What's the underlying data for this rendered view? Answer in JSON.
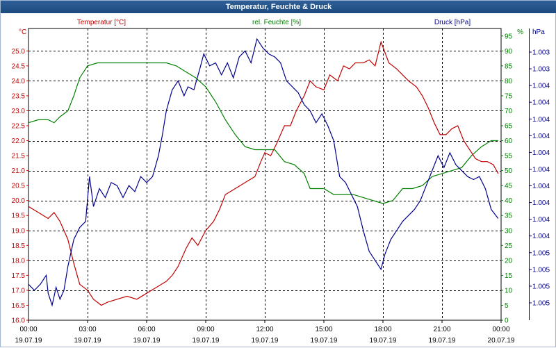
{
  "window": {
    "title": "Temperatur, Feuchte & Druck"
  },
  "colors": {
    "temperature": "#c00000",
    "humidity": "#008000",
    "pressure": "#00008b",
    "title_bar": "#1f4e86",
    "grid": "#000000"
  },
  "chart_data": {
    "type": "line",
    "title": "Temperatur, Feuchte & Druck",
    "x_range": [
      "19.07.19 00:00",
      "20.07.19 00:00"
    ],
    "x_tick_labels": [
      [
        "00:00",
        "19.07.19"
      ],
      [
        "03:00",
        "19.07.19"
      ],
      [
        "06:00",
        "19.07.19"
      ],
      [
        "09:00",
        "19.07.19"
      ],
      [
        "12:00",
        "19.07.19"
      ],
      [
        "15:00",
        "19.07.19"
      ],
      [
        "18:00",
        "19.07.19"
      ],
      [
        "21:00",
        "19.07.19"
      ],
      [
        "00:00",
        "20.07.19"
      ]
    ],
    "grid": true,
    "axes": {
      "temperature": {
        "unit_label": "°C",
        "ylim": [
          16.0,
          25.75
        ],
        "tick_labels": [
          "16.0",
          "16.5",
          "17.0",
          "17.5",
          "18.0",
          "18.5",
          "19.0",
          "19.5",
          "20.0",
          "20.5",
          "21.0",
          "21.5",
          "22.0",
          "22.5",
          "23.0",
          "23.5",
          "24.0",
          "24.5",
          "25.0"
        ]
      },
      "humidity": {
        "unit_label": "%",
        "ylim": [
          0,
          97.5
        ],
        "tick_labels": [
          "0",
          "5",
          "10",
          "15",
          "20",
          "25",
          "30",
          "35",
          "40",
          "45",
          "50",
          "55",
          "60",
          "65",
          "70",
          "75",
          "80",
          "85",
          "90",
          "95"
        ]
      },
      "pressure": {
        "unit_label": "hPa",
        "tick_labels": [
          "1.003",
          "1.003",
          "1.004",
          "1.004",
          "1.004",
          "1.004",
          "1.004",
          "1.004",
          "1.004",
          "1.004",
          "1.004",
          "1.004",
          "1.005",
          "1.005",
          "1.005",
          "1.005"
        ]
      }
    },
    "series": [
      {
        "name": "Temperatur [°C]",
        "axis": "temperature",
        "points": [
          [
            0,
            19.8
          ],
          [
            0.5,
            19.6
          ],
          [
            1,
            19.4
          ],
          [
            1.3,
            19.6
          ],
          [
            1.6,
            19.3
          ],
          [
            2,
            18.7
          ],
          [
            2.3,
            17.9
          ],
          [
            2.6,
            17.2
          ],
          [
            3,
            17.0
          ],
          [
            3.3,
            16.7
          ],
          [
            3.7,
            16.5
          ],
          [
            4,
            16.6
          ],
          [
            4.5,
            16.7
          ],
          [
            5,
            16.8
          ],
          [
            5.5,
            16.7
          ],
          [
            6,
            16.9
          ],
          [
            6.5,
            17.1
          ],
          [
            7,
            17.3
          ],
          [
            7.3,
            17.5
          ],
          [
            7.6,
            17.8
          ],
          [
            8,
            18.4
          ],
          [
            8.3,
            18.75
          ],
          [
            8.6,
            18.5
          ],
          [
            9,
            19.0
          ],
          [
            9.4,
            19.3
          ],
          [
            9.7,
            19.7
          ],
          [
            10,
            20.2
          ],
          [
            10.5,
            20.4
          ],
          [
            11,
            20.6
          ],
          [
            11.5,
            20.8
          ],
          [
            11.8,
            21.3
          ],
          [
            12,
            21.6
          ],
          [
            12.3,
            21.5
          ],
          [
            12.6,
            21.9
          ],
          [
            13,
            22.5
          ],
          [
            13.3,
            22.5
          ],
          [
            13.6,
            23.0
          ],
          [
            14,
            23.5
          ],
          [
            14.3,
            24.0
          ],
          [
            14.6,
            23.8
          ],
          [
            15,
            23.7
          ],
          [
            15.3,
            24.2
          ],
          [
            15.7,
            24.0
          ],
          [
            16,
            24.5
          ],
          [
            16.3,
            24.4
          ],
          [
            16.6,
            24.6
          ],
          [
            17,
            24.6
          ],
          [
            17.3,
            24.7
          ],
          [
            17.6,
            24.5
          ],
          [
            17.9,
            25.3
          ],
          [
            18.3,
            24.6
          ],
          [
            18.7,
            24.4
          ],
          [
            19,
            24.2
          ],
          [
            19.3,
            24.0
          ],
          [
            19.7,
            23.8
          ],
          [
            20,
            23.5
          ],
          [
            20.3,
            23.1
          ],
          [
            20.6,
            22.6
          ],
          [
            20.9,
            22.2
          ],
          [
            21.2,
            22.2
          ],
          [
            21.5,
            22.4
          ],
          [
            21.8,
            22.5
          ],
          [
            22.1,
            22.0
          ],
          [
            22.4,
            21.7
          ],
          [
            22.7,
            21.4
          ],
          [
            23,
            21.3
          ],
          [
            23.3,
            21.3
          ],
          [
            23.6,
            21.2
          ],
          [
            23.85,
            20.9
          ]
        ]
      },
      {
        "name": "rel. Feuchte [%]",
        "axis": "humidity",
        "points": [
          [
            0,
            66
          ],
          [
            0.5,
            67
          ],
          [
            1,
            67
          ],
          [
            1.3,
            66
          ],
          [
            1.6,
            68
          ],
          [
            2,
            70
          ],
          [
            2.3,
            75
          ],
          [
            2.6,
            81
          ],
          [
            3,
            85
          ],
          [
            3.5,
            86
          ],
          [
            4,
            86
          ],
          [
            4.5,
            86
          ],
          [
            5,
            86
          ],
          [
            5.5,
            86
          ],
          [
            6,
            86
          ],
          [
            6.5,
            86
          ],
          [
            7,
            86
          ],
          [
            7.5,
            85
          ],
          [
            8,
            83
          ],
          [
            8.5,
            81
          ],
          [
            9,
            78
          ],
          [
            9.5,
            73
          ],
          [
            10,
            67
          ],
          [
            10.5,
            62
          ],
          [
            11,
            58
          ],
          [
            11.5,
            57
          ],
          [
            12,
            57
          ],
          [
            12.5,
            57
          ],
          [
            13,
            53
          ],
          [
            13.5,
            52
          ],
          [
            14,
            49
          ],
          [
            14.3,
            44
          ],
          [
            14.6,
            44
          ],
          [
            15,
            44
          ],
          [
            15.5,
            42
          ],
          [
            16,
            42
          ],
          [
            16.5,
            42
          ],
          [
            17,
            41
          ],
          [
            17.5,
            40
          ],
          [
            18,
            39
          ],
          [
            18.5,
            40
          ],
          [
            19,
            44
          ],
          [
            19.5,
            44
          ],
          [
            20,
            45
          ],
          [
            20.5,
            48
          ],
          [
            21,
            49
          ],
          [
            21.5,
            50
          ],
          [
            22,
            51
          ],
          [
            22.5,
            55
          ],
          [
            23,
            58
          ],
          [
            23.5,
            60
          ],
          [
            23.85,
            60
          ]
        ]
      },
      {
        "name": "Druck [hPa]",
        "axis": "pressure",
        "points": [
          [
            0,
            12
          ],
          [
            0.3,
            10
          ],
          [
            0.6,
            12
          ],
          [
            0.9,
            15
          ],
          [
            1.0,
            9
          ],
          [
            1.2,
            5
          ],
          [
            1.4,
            11
          ],
          [
            1.6,
            7
          ],
          [
            1.8,
            10
          ],
          [
            2.0,
            18
          ],
          [
            2.3,
            27
          ],
          [
            2.6,
            31
          ],
          [
            2.9,
            33
          ],
          [
            3.1,
            48
          ],
          [
            3.3,
            38
          ],
          [
            3.6,
            44
          ],
          [
            3.9,
            41
          ],
          [
            4.2,
            46
          ],
          [
            4.5,
            45
          ],
          [
            4.8,
            41
          ],
          [
            5.1,
            45
          ],
          [
            5.4,
            43
          ],
          [
            5.7,
            48
          ],
          [
            6.0,
            46
          ],
          [
            6.3,
            48
          ],
          [
            6.6,
            55
          ],
          [
            6.8,
            62
          ],
          [
            7.0,
            70
          ],
          [
            7.3,
            77
          ],
          [
            7.6,
            80
          ],
          [
            7.9,
            75
          ],
          [
            8.1,
            78
          ],
          [
            8.4,
            77
          ],
          [
            8.7,
            84
          ],
          [
            8.9,
            89
          ],
          [
            9.2,
            85
          ],
          [
            9.5,
            86
          ],
          [
            9.8,
            82
          ],
          [
            10.1,
            86
          ],
          [
            10.4,
            81
          ],
          [
            10.7,
            88
          ],
          [
            11.0,
            90
          ],
          [
            11.3,
            86
          ],
          [
            11.6,
            94
          ],
          [
            11.9,
            91
          ],
          [
            12.2,
            89
          ],
          [
            12.5,
            88
          ],
          [
            12.8,
            86
          ],
          [
            13.1,
            80
          ],
          [
            13.4,
            78
          ],
          [
            13.7,
            76
          ],
          [
            14.0,
            72
          ],
          [
            14.3,
            70
          ],
          [
            14.6,
            66
          ],
          [
            14.9,
            69
          ],
          [
            15.2,
            65
          ],
          [
            15.5,
            60
          ],
          [
            15.8,
            48
          ],
          [
            16.1,
            46
          ],
          [
            16.4,
            42
          ],
          [
            16.7,
            38
          ],
          [
            17.0,
            30
          ],
          [
            17.3,
            23
          ],
          [
            17.6,
            20
          ],
          [
            17.9,
            17
          ],
          [
            18.1,
            22
          ],
          [
            18.4,
            27
          ],
          [
            18.7,
            30
          ],
          [
            19.0,
            33
          ],
          [
            19.3,
            35
          ],
          [
            19.6,
            37
          ],
          [
            19.9,
            40
          ],
          [
            20.2,
            45
          ],
          [
            20.5,
            50
          ],
          [
            20.8,
            55
          ],
          [
            21.1,
            51
          ],
          [
            21.4,
            56
          ],
          [
            21.7,
            52
          ],
          [
            22.0,
            50
          ],
          [
            22.3,
            48
          ],
          [
            22.6,
            47
          ],
          [
            22.9,
            48
          ],
          [
            23.2,
            44
          ],
          [
            23.5,
            37
          ],
          [
            23.85,
            34
          ]
        ]
      }
    ]
  }
}
